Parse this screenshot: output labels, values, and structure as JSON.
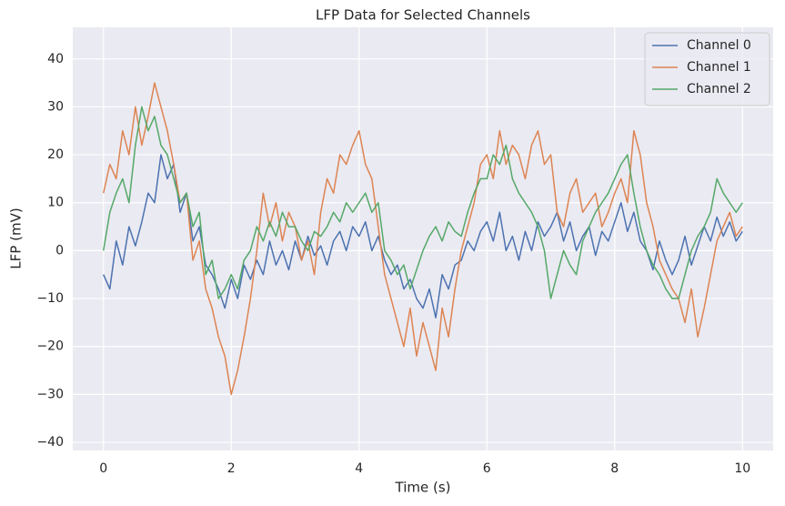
{
  "chart_data": {
    "type": "line",
    "title": "LFP Data for Selected Channels",
    "x_label": "Time (s)",
    "y_label": "LFP (mV)",
    "x": [
      0,
      0.1,
      0.2,
      0.3,
      0.4,
      0.5,
      0.6,
      0.7,
      0.8,
      0.9,
      1,
      1.1,
      1.2,
      1.3,
      1.4,
      1.5,
      1.6,
      1.7,
      1.8,
      1.9,
      2,
      2.1,
      2.2,
      2.3,
      2.4,
      2.5,
      2.6,
      2.7,
      2.8,
      2.9,
      3,
      3.1,
      3.2,
      3.3,
      3.4,
      3.5,
      3.6,
      3.7,
      3.8,
      3.9,
      4,
      4.1,
      4.2,
      4.3,
      4.4,
      4.5,
      4.6,
      4.7,
      4.8,
      4.9,
      5,
      5.1,
      5.2,
      5.3,
      5.4,
      5.5,
      5.6,
      5.7,
      5.8,
      5.9,
      6,
      6.1,
      6.2,
      6.3,
      6.4,
      6.5,
      6.6,
      6.7,
      6.8,
      6.9,
      7,
      7.1,
      7.2,
      7.3,
      7.4,
      7.5,
      7.6,
      7.7,
      7.8,
      7.9,
      8,
      8.1,
      8.2,
      8.3,
      8.4,
      8.5,
      8.6,
      8.7,
      8.8,
      8.9,
      9,
      9.1,
      9.2,
      9.3,
      9.4,
      9.5,
      9.6,
      9.7,
      9.8,
      9.9,
      10
    ],
    "series": [
      {
        "name": "Channel 0",
        "color": "#4c72b0",
        "values": [
          -5,
          -8,
          2,
          -3,
          5,
          1,
          6,
          12,
          10,
          20,
          15,
          18,
          8,
          12,
          2,
          5,
          -3,
          -5,
          -8,
          -12,
          -6,
          -10,
          -3,
          -6,
          -2,
          -5,
          2,
          -3,
          0,
          -4,
          2,
          -2,
          3,
          -1,
          1,
          -3,
          2,
          4,
          0,
          5,
          3,
          6,
          0,
          3,
          -2,
          -5,
          -3,
          -8,
          -6,
          -10,
          -12,
          -8,
          -14,
          -5,
          -8,
          -3,
          -2,
          2,
          0,
          4,
          6,
          2,
          8,
          0,
          3,
          -2,
          4,
          0,
          6,
          3,
          5,
          8,
          2,
          6,
          0,
          3,
          5,
          -1,
          4,
          2,
          6,
          10,
          4,
          8,
          2,
          0,
          -4,
          2,
          -2,
          -5,
          -2,
          3,
          -3,
          1,
          5,
          2,
          7,
          3,
          6,
          2,
          4
        ]
      },
      {
        "name": "Channel 1",
        "color": "#dd8452",
        "values": [
          12,
          18,
          15,
          25,
          20,
          30,
          22,
          28,
          35,
          30,
          25,
          18,
          10,
          12,
          -2,
          2,
          -8,
          -12,
          -18,
          -22,
          -30,
          -25,
          -18,
          -10,
          0,
          12,
          5,
          10,
          2,
          8,
          5,
          -2,
          2,
          -5,
          8,
          15,
          12,
          20,
          18,
          22,
          25,
          18,
          15,
          5,
          -5,
          -10,
          -15,
          -20,
          -12,
          -22,
          -15,
          -20,
          -25,
          -12,
          -18,
          -8,
          0,
          5,
          10,
          18,
          20,
          15,
          25,
          18,
          22,
          20,
          15,
          22,
          25,
          18,
          20,
          8,
          5,
          12,
          15,
          8,
          10,
          12,
          5,
          8,
          12,
          15,
          10,
          25,
          20,
          10,
          5,
          -2,
          -5,
          -8,
          -10,
          -15,
          -8,
          -18,
          -12,
          -5,
          2,
          5,
          8,
          3,
          5
        ]
      },
      {
        "name": "Channel 2",
        "color": "#55a868",
        "values": [
          0,
          8,
          12,
          15,
          10,
          22,
          30,
          25,
          28,
          22,
          20,
          15,
          10,
          12,
          5,
          8,
          -5,
          -2,
          -10,
          -8,
          -5,
          -8,
          -2,
          0,
          5,
          2,
          6,
          3,
          8,
          5,
          5,
          2,
          0,
          4,
          3,
          5,
          8,
          6,
          10,
          8,
          10,
          12,
          8,
          10,
          0,
          -2,
          -5,
          -3,
          -8,
          -4,
          0,
          3,
          5,
          2,
          6,
          4,
          3,
          8,
          12,
          15,
          15,
          20,
          18,
          22,
          15,
          12,
          10,
          8,
          5,
          0,
          -10,
          -5,
          0,
          -3,
          -5,
          2,
          5,
          8,
          10,
          12,
          15,
          18,
          20,
          12,
          5,
          0,
          -3,
          -5,
          -8,
          -10,
          -10,
          -5,
          0,
          3,
          5,
          8,
          15,
          12,
          10,
          8,
          10
        ]
      }
    ],
    "xlim": [
      -0.48,
      10.48
    ],
    "xticks": [
      0,
      2,
      4,
      6,
      8,
      10
    ],
    "ylim": [
      -41.7,
      46.6
    ],
    "yticks": [
      {
        "value": -40,
        "label": "−40"
      },
      {
        "value": -30,
        "label": "−30"
      },
      {
        "value": -20,
        "label": "−20"
      },
      {
        "value": -10,
        "label": "−10"
      },
      0,
      10,
      20,
      30,
      40
    ],
    "grid": true,
    "legend": "upper right"
  }
}
